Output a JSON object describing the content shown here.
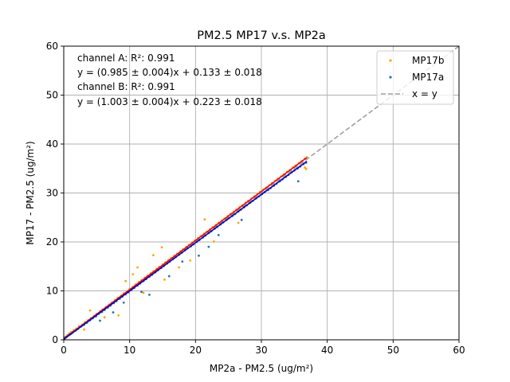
{
  "chart_data": {
    "type": "scatter",
    "title": "PM2.5 MP17 v.s. MP2a",
    "xlabel": "MP2a - PM2.5 (ug/m²)",
    "ylabel": "MP17 - PM2.5 (ug/m²)",
    "xlim": [
      0,
      60
    ],
    "ylim": [
      0,
      60
    ],
    "xticks": [
      0,
      10,
      20,
      30,
      40,
      50,
      60
    ],
    "yticks": [
      0,
      10,
      20,
      30,
      40,
      50,
      60
    ],
    "grid": true,
    "legend_position": "top-right",
    "annotations": [
      "channel A: R²: 0.991",
      "y = (0.985 ± 0.004)x + 0.133 ± 0.018",
      "channel B: R²: 0.991",
      "y = (1.003 ± 0.004)x + 0.223 ± 0.018"
    ],
    "series": [
      {
        "name": "MP17b",
        "kind": "points",
        "color": "#ffa500",
        "x": [
          0.2,
          0.5,
          0.8,
          1.1,
          1.5,
          1.9,
          2.3,
          2.8,
          3.2,
          3.7,
          4.1,
          4.6,
          5.0,
          5.5,
          5.9,
          6.4,
          6.9,
          7.3,
          7.8,
          8.2,
          8.7,
          9.1,
          9.6,
          10.0,
          10.5,
          10.9,
          11.4,
          11.8,
          12.3,
          12.7,
          13.2,
          13.6,
          14.1,
          14.5,
          15.0,
          15.4,
          15.9,
          16.3,
          16.8,
          17.2,
          17.7,
          18.1,
          18.6,
          19.0,
          19.5,
          19.9,
          20.4,
          20.8,
          21.3,
          21.7,
          22.2,
          22.6,
          23.1,
          23.5,
          24.0,
          24.4,
          24.9,
          25.3,
          25.8,
          26.2,
          26.7,
          27.1,
          27.6,
          28.0,
          28.5,
          28.9,
          29.4,
          29.8,
          30.3,
          30.7,
          31.2,
          31.6,
          32.1,
          32.5,
          33.0,
          33.4,
          33.9,
          34.3,
          34.8,
          35.2,
          35.7,
          36.1,
          36.6,
          36.9,
          8.3,
          10.5,
          11.2,
          12.1,
          14.9,
          15.3,
          19.2,
          21.4,
          22.8,
          26.5,
          4.0,
          6.2,
          3.1,
          9.4,
          17.5,
          13.6,
          36.8,
          36.6
        ],
        "y": [
          0.6,
          0.9,
          1.3,
          1.6,
          2.0,
          2.3,
          2.8,
          3.1,
          3.6,
          4.0,
          4.4,
          4.9,
          5.3,
          5.8,
          6.2,
          6.7,
          7.2,
          7.6,
          8.1,
          8.6,
          9.0,
          9.5,
          9.9,
          10.4,
          10.8,
          11.3,
          11.8,
          12.2,
          12.7,
          13.1,
          13.6,
          14.0,
          14.5,
          14.9,
          15.4,
          15.8,
          16.3,
          16.7,
          17.2,
          17.6,
          18.1,
          18.5,
          19.0,
          19.4,
          19.9,
          20.3,
          20.8,
          21.2,
          21.7,
          22.1,
          22.6,
          23.0,
          23.5,
          23.9,
          24.4,
          24.8,
          25.3,
          25.7,
          26.2,
          26.6,
          27.1,
          27.5,
          28.0,
          28.4,
          28.9,
          29.3,
          29.8,
          30.2,
          30.7,
          31.1,
          31.6,
          32.0,
          32.5,
          32.9,
          33.4,
          33.8,
          34.3,
          34.7,
          35.2,
          35.6,
          36.1,
          36.5,
          37.0,
          37.3,
          5.0,
          13.4,
          14.8,
          9.6,
          18.9,
          12.3,
          16.2,
          24.6,
          20.1,
          23.9,
          6.0,
          4.6,
          2.1,
          12.0,
          14.8,
          17.3,
          34.9,
          35.2
        ]
      },
      {
        "name": "MP17a",
        "kind": "points",
        "color": "#1f77b4",
        "x": [
          0.1,
          0.4,
          0.7,
          1.0,
          1.4,
          1.8,
          2.2,
          2.6,
          3.1,
          3.5,
          4.0,
          4.4,
          4.9,
          5.3,
          5.8,
          6.2,
          6.7,
          7.1,
          7.6,
          8.0,
          8.5,
          8.9,
          9.4,
          9.8,
          10.3,
          10.7,
          11.2,
          11.6,
          12.1,
          12.5,
          13.0,
          13.4,
          13.9,
          14.3,
          14.8,
          15.2,
          15.7,
          16.1,
          16.6,
          17.0,
          17.5,
          17.9,
          18.4,
          18.8,
          19.3,
          19.7,
          20.2,
          20.6,
          21.1,
          21.5,
          22.0,
          22.4,
          22.9,
          23.3,
          23.8,
          24.2,
          24.7,
          25.1,
          25.6,
          26.0,
          26.5,
          26.9,
          27.4,
          27.8,
          28.3,
          28.7,
          29.2,
          29.6,
          30.1,
          30.5,
          31.0,
          31.4,
          31.9,
          32.3,
          32.8,
          33.2,
          33.7,
          34.1,
          34.6,
          35.0,
          35.5,
          35.9,
          36.4,
          36.8,
          9.1,
          11.8,
          13.0,
          16.0,
          20.5,
          23.5,
          27.0,
          5.5,
          7.5,
          18.0,
          22.0,
          35.6
        ],
        "y": [
          0.3,
          0.6,
          0.9,
          1.2,
          1.6,
          1.9,
          2.3,
          2.7,
          3.1,
          3.5,
          4.0,
          4.4,
          4.8,
          5.3,
          5.7,
          6.1,
          6.6,
          7.0,
          7.5,
          7.9,
          8.4,
          8.8,
          9.3,
          9.7,
          10.2,
          10.6,
          11.1,
          11.5,
          12.0,
          12.4,
          12.9,
          13.3,
          13.8,
          14.2,
          14.7,
          15.1,
          15.6,
          16.0,
          16.5,
          16.9,
          17.4,
          17.8,
          18.3,
          18.7,
          19.1,
          19.5,
          20.0,
          20.4,
          20.9,
          21.3,
          21.8,
          22.2,
          22.7,
          23.1,
          23.6,
          24.0,
          24.5,
          24.9,
          25.3,
          25.7,
          26.2,
          26.6,
          27.1,
          27.5,
          28.0,
          28.4,
          28.9,
          29.3,
          29.8,
          30.2,
          30.6,
          31.0,
          31.5,
          31.9,
          32.4,
          32.8,
          33.3,
          33.7,
          34.2,
          34.6,
          35.0,
          35.4,
          35.9,
          36.2,
          7.6,
          9.8,
          9.2,
          13.0,
          17.2,
          21.4,
          24.5,
          3.9,
          5.6,
          16.0,
          19.0,
          32.4
        ]
      },
      {
        "name": "x = y",
        "kind": "line",
        "style": "dashed",
        "color": "#a0a0a0",
        "x": [
          0,
          60
        ],
        "y": [
          0,
          60
        ]
      },
      {
        "kind": "line",
        "style": "solid",
        "color": "#ff0000",
        "x": [
          0,
          36.9
        ],
        "y": [
          0.223,
          37.23
        ]
      },
      {
        "kind": "line",
        "style": "solid",
        "color": "#0000cd",
        "x": [
          0,
          36.9
        ],
        "y": [
          0.133,
          36.48
        ]
      }
    ]
  }
}
